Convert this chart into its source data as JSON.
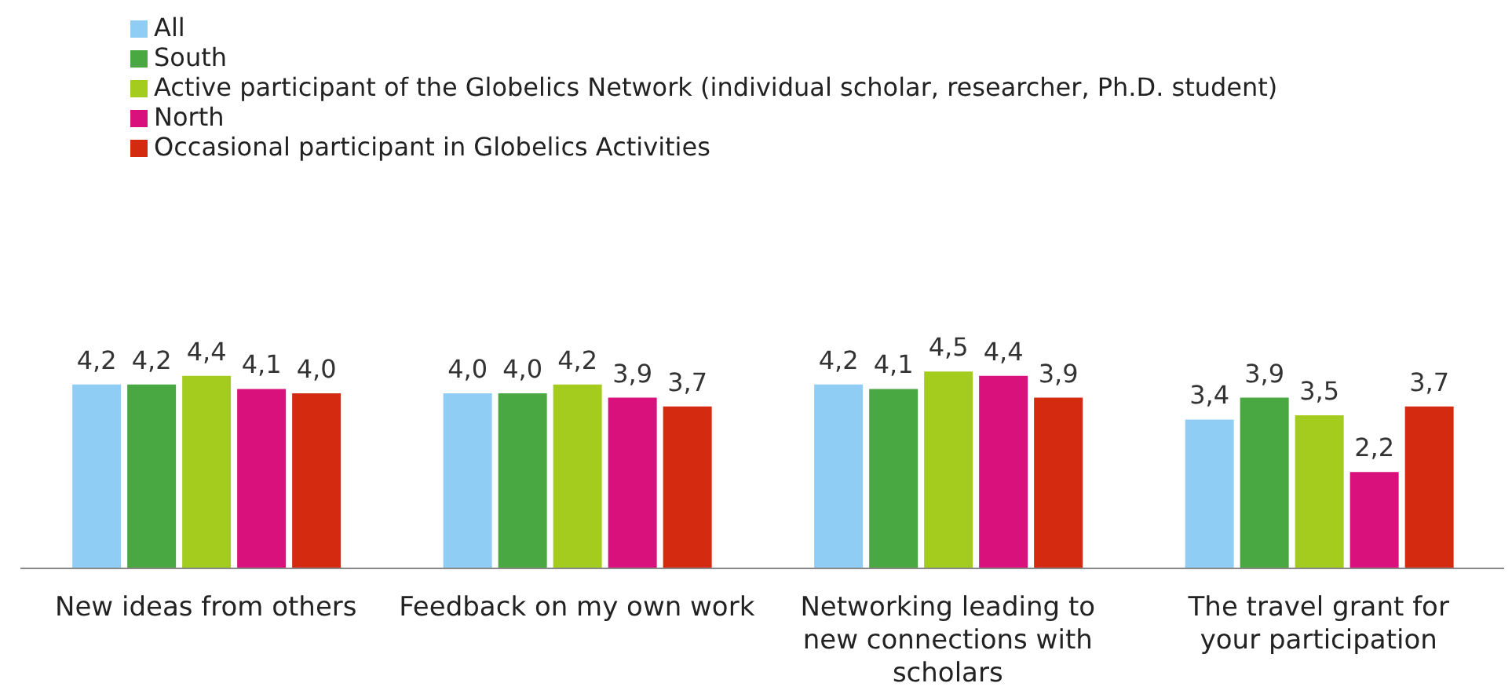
{
  "chart_data": {
    "type": "bar",
    "categories": [
      "New ideas from others",
      "Feedback on my own work",
      "Networking leading to new connections with scholars",
      "The travel grant for your participation"
    ],
    "series": [
      {
        "name": "All",
        "color": "#8fcdf5",
        "values": [
          4.2,
          4.0,
          4.2,
          3.4
        ],
        "value_labels": [
          "4,2",
          "4,0",
          "4,2",
          "3,4"
        ]
      },
      {
        "name": "South",
        "color": "#4aa843",
        "values": [
          4.2,
          4.0,
          4.1,
          3.9
        ],
        "value_labels": [
          "4,2",
          "4,0",
          "4,1",
          "3,9"
        ]
      },
      {
        "name": "Active participant of the Globelics Network (individual scholar, researcher, Ph.D. student)",
        "color": "#a3cc1f",
        "values": [
          4.4,
          4.2,
          4.5,
          3.5
        ],
        "value_labels": [
          "4,4",
          "4,2",
          "4,5",
          "3,5"
        ]
      },
      {
        "name": "North",
        "color": "#d9117d",
        "values": [
          4.1,
          3.9,
          4.4,
          2.2
        ],
        "value_labels": [
          "4,1",
          "3,9",
          "4,4",
          "2,2"
        ]
      },
      {
        "name": "Occasional participant in Globelics Activities",
        "color": "#d42a10",
        "values": [
          4.0,
          3.7,
          3.9,
          3.7
        ],
        "value_labels": [
          "4,0",
          "3,7",
          "3,9",
          "3,7"
        ]
      }
    ],
    "legend": "top left",
    "grid": false,
    "tick_labels": "x"
  }
}
